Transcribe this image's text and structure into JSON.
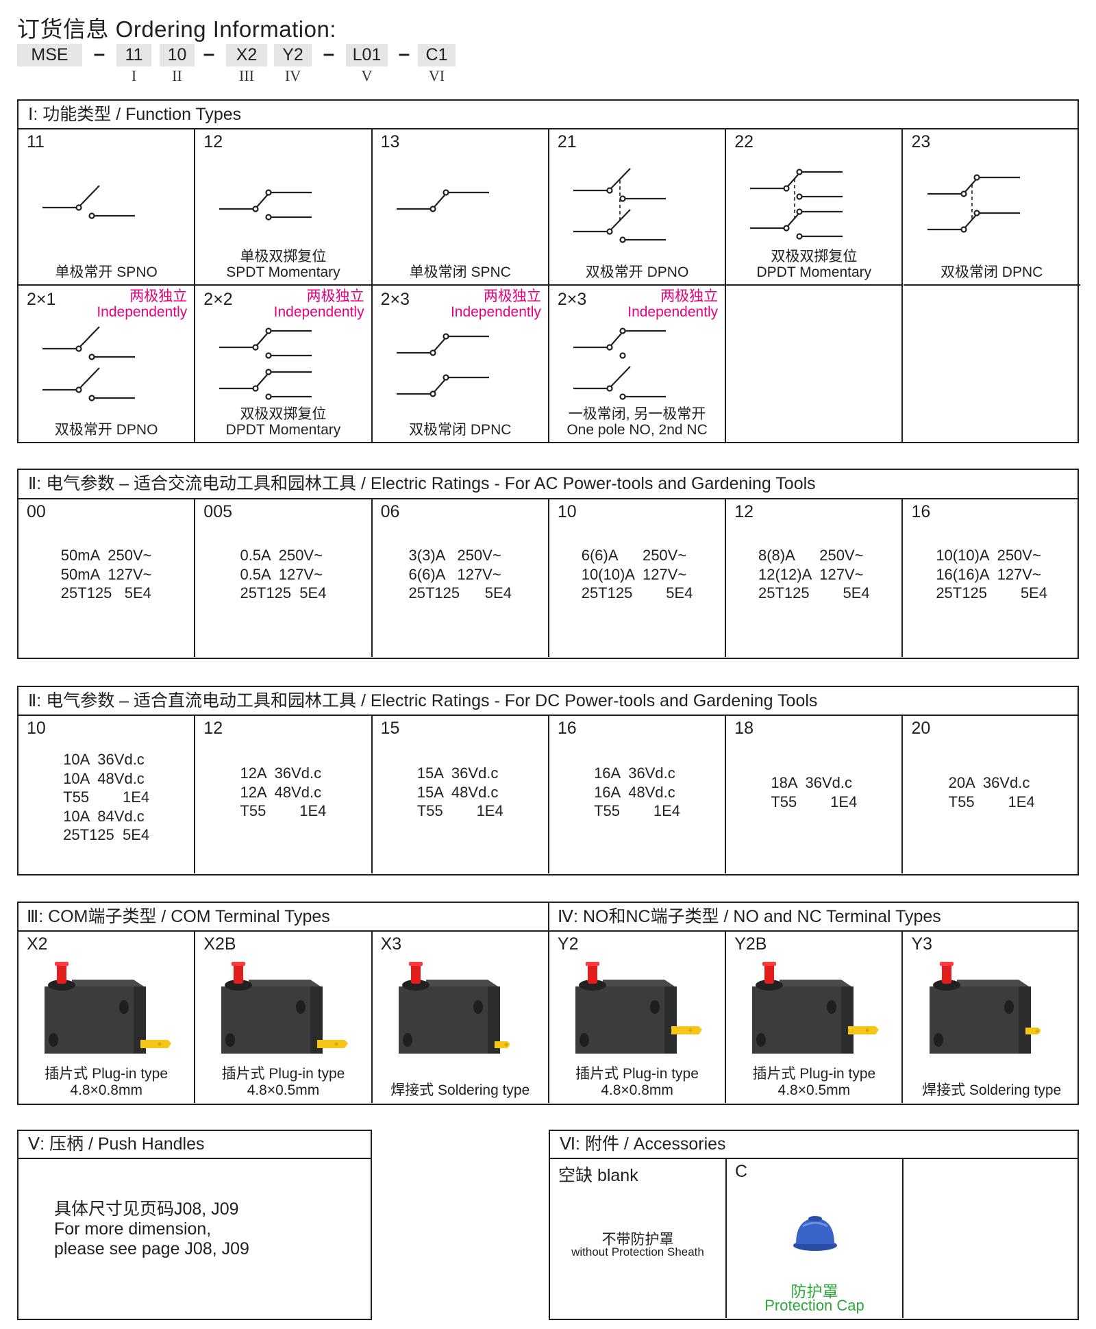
{
  "title": "订货信息 Ordering Information:",
  "code": {
    "parts": [
      "MSE",
      "11",
      "10",
      "X2",
      "Y2",
      "L01",
      "C1"
    ],
    "romans": [
      "I",
      "II",
      "III",
      "IV",
      "V",
      "VI"
    ],
    "dash": "–"
  },
  "function_types": {
    "header": "Ⅰ: 功能类型 / Function Types",
    "independent_cn": "两极独立",
    "independent_en": "Independently",
    "row1": [
      {
        "code": "11",
        "diagram": "spno-icon",
        "caption": [
          "单极常开  SPNO"
        ]
      },
      {
        "code": "12",
        "diagram": "spdt-icon",
        "caption": [
          "单极双掷复位",
          "SPDT Momentary"
        ]
      },
      {
        "code": "13",
        "diagram": "spnc-icon",
        "caption": [
          "单极常闭  SPNC"
        ]
      },
      {
        "code": "21",
        "diagram": "dpno-icon",
        "caption": [
          "双极常开  DPNO"
        ]
      },
      {
        "code": "22",
        "diagram": "dpdt-icon",
        "caption": [
          "双极双掷复位",
          "DPDT Momentary"
        ]
      },
      {
        "code": "23",
        "diagram": "dpnc-icon",
        "caption": [
          "双极常闭  DPNC"
        ]
      }
    ],
    "row2": [
      {
        "code": "2×1",
        "diagram": "dpno-independent-icon",
        "caption": [
          "双极常开  DPNO"
        ]
      },
      {
        "code": "2×2",
        "diagram": "dpdt-independent-icon",
        "caption": [
          "双极双掷复位",
          "DPDT Momentary"
        ]
      },
      {
        "code": "2×3",
        "diagram": "dpnc-independent-icon",
        "caption": [
          "双极常闭  DPNC"
        ]
      },
      {
        "code": "2×3",
        "diagram": "nc-no-independent-icon",
        "caption": [
          "一极常闭, 另一极常开",
          "One pole NO, 2nd NC"
        ]
      }
    ]
  },
  "ac_ratings": {
    "header": "Ⅱ: 电气参数 – 适合交流电动工具和园林工具 / Electric Ratings - For AC Power-tools and Gardening Tools",
    "cells": [
      {
        "code": "00",
        "lines": [
          "50mA  250V~",
          "50mA  127V~",
          "25T125   5E4"
        ]
      },
      {
        "code": "005",
        "lines": [
          "0.5A  250V~",
          "0.5A  127V~",
          "25T125  5E4"
        ]
      },
      {
        "code": "06",
        "lines": [
          "3(3)A   250V~",
          "6(6)A   127V~",
          "25T125      5E4"
        ]
      },
      {
        "code": "10",
        "lines": [
          "6(6)A      250V~",
          "10(10)A  127V~",
          "25T125        5E4"
        ]
      },
      {
        "code": "12",
        "lines": [
          "8(8)A      250V~",
          "12(12)A  127V~",
          "25T125        5E4"
        ]
      },
      {
        "code": "16",
        "lines": [
          "10(10)A  250V~",
          "16(16)A  127V~",
          "25T125        5E4"
        ]
      }
    ]
  },
  "dc_ratings": {
    "header": "Ⅱ: 电气参数 – 适合直流电动工具和园林工具 / Electric Ratings - For DC Power-tools and Gardening Tools",
    "cells": [
      {
        "code": "10",
        "lines": [
          "10A  36Vd.c",
          "10A  48Vd.c",
          "T55        1E4",
          "10A  84Vd.c",
          "25T125  5E4"
        ]
      },
      {
        "code": "12",
        "lines": [
          "12A  36Vd.c",
          "12A  48Vd.c",
          "T55        1E4"
        ]
      },
      {
        "code": "15",
        "lines": [
          "15A  36Vd.c",
          "15A  48Vd.c",
          "T55        1E4"
        ]
      },
      {
        "code": "16",
        "lines": [
          "16A  36Vd.c",
          "16A  48Vd.c",
          "T55        1E4"
        ]
      },
      {
        "code": "18",
        "lines": [
          "18A  36Vd.c",
          "T55        1E4"
        ]
      },
      {
        "code": "20",
        "lines": [
          "20A  36Vd.c",
          "T55        1E4"
        ]
      }
    ]
  },
  "terminals": {
    "header_com": "Ⅲ: COM端子类型 / COM Terminal Types",
    "header_no_nc": "Ⅳ: NO和NC端子类型 / NO and NC Terminal Types",
    "cells": [
      {
        "code": "X2",
        "image": "switch-plug-in-com-icon",
        "caption": [
          "插片式  Plug-in type",
          "4.8×0.8mm"
        ]
      },
      {
        "code": "X2B",
        "image": "switch-plug-in-com-icon",
        "caption": [
          "插片式  Plug-in type",
          "4.8×0.5mm"
        ]
      },
      {
        "code": "X3",
        "image": "switch-soldering-com-icon",
        "caption": [
          "焊接式  Soldering type"
        ]
      },
      {
        "code": "Y2",
        "image": "switch-plug-in-no-nc-icon",
        "caption": [
          "插片式  Plug-in type",
          "4.8×0.8mm"
        ]
      },
      {
        "code": "Y2B",
        "image": "switch-plug-in-no-nc-icon",
        "caption": [
          "插片式  Plug-in type",
          "4.8×0.5mm"
        ]
      },
      {
        "code": "Y3",
        "image": "switch-soldering-no-nc-icon",
        "caption": [
          "焊接式  Soldering type"
        ]
      }
    ],
    "colors": {
      "body": "#3b3d3c",
      "plunger": "#e01e1e",
      "tab": "#f5c518"
    }
  },
  "push_handles": {
    "header": "Ⅴ: 压柄 / Push Handles",
    "lines": [
      "具体尺寸见页码J08, J09",
      "For more dimension,",
      "please see page J08, J09"
    ]
  },
  "accessories": {
    "header": "Ⅵ: 附件 / Accessories",
    "blank": {
      "code": "空缺  blank",
      "caption_cn": "不带防护罩",
      "caption_en": "without Protection Sheath"
    },
    "cap": {
      "code": "C",
      "caption_cn": "防护罩",
      "caption_en": "Protection Cap",
      "color": "#2f56b8",
      "caption_color": "#2aa63a"
    }
  }
}
